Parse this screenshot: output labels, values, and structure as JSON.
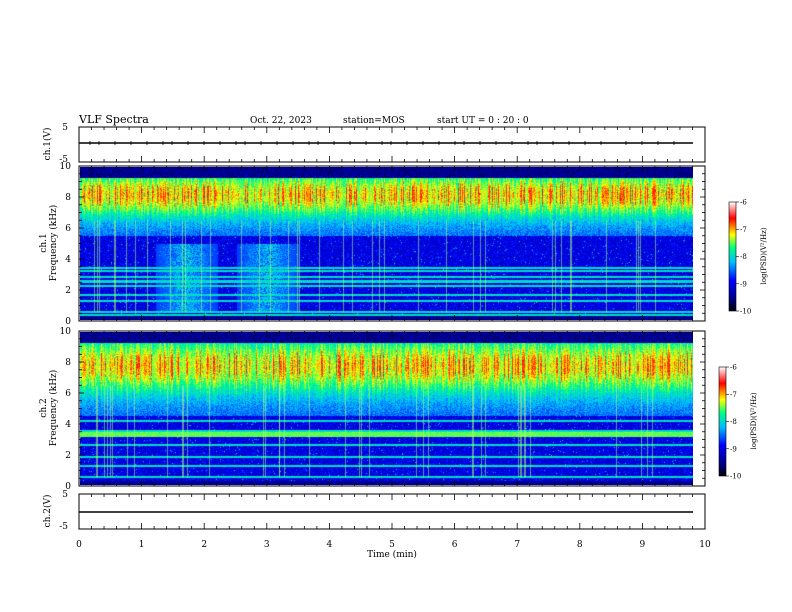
{
  "header": {
    "title": "VLF Spectra",
    "date": "Oct. 22, 2023",
    "station": "station=MOS",
    "start": "start  UT =   0 : 20 : 0"
  },
  "chart_data": [
    {
      "type": "line",
      "name": "ch1-waveform-panel",
      "ylabel": "ch.1(V)",
      "ylim": [
        -5,
        5
      ],
      "yticks": [
        "5",
        "-5"
      ],
      "xlim": [
        0,
        10
      ],
      "series": [
        {
          "x": [
            0,
            9.8
          ],
          "y": [
            0,
            0
          ]
        }
      ]
    },
    {
      "type": "heatmap",
      "name": "ch1-spectrogram",
      "ylabel": "ch.1\nFrequency (kHz)",
      "ylim": [
        0,
        10
      ],
      "yticks": [
        "0",
        "2",
        "4",
        "6",
        "8",
        "10"
      ],
      "xlim": [
        0,
        10
      ],
      "data_end_min": 9.8,
      "colorbar": {
        "label": "log(PSD)(V²/Hz)",
        "range": [
          -10,
          -6
        ],
        "ticks": [
          "-6",
          "-7",
          "-8",
          "-9",
          "-10"
        ],
        "colors": [
          "#000000",
          "#000080",
          "#0000ff",
          "#00c0ff",
          "#00ff80",
          "#ffff00",
          "#ff0000",
          "#ffffff"
        ]
      },
      "features": {
        "persistent_lines_khz": [
          0.3,
          0.5,
          1.2,
          1.6,
          2.2,
          2.5,
          2.8,
          3.2,
          3.4
        ],
        "noise_burst_min": [
          1.7,
          3.0
        ],
        "sferic_band_khz": [
          5.5,
          10
        ]
      }
    },
    {
      "type": "heatmap",
      "name": "ch2-spectrogram",
      "ylabel": "ch.2\nFrequency (kHz)",
      "ylim": [
        0,
        10
      ],
      "yticks": [
        "0",
        "2",
        "4",
        "6",
        "8",
        "10"
      ],
      "xlim": [
        0,
        10
      ],
      "data_end_min": 9.8,
      "colorbar": {
        "label": "log(PSD)(V²/Hz)",
        "range": [
          -10,
          -6
        ],
        "ticks": [
          "-6",
          "-7",
          "-8",
          "-9",
          "-10"
        ]
      },
      "features": {
        "persistent_lines_khz": [
          0.5,
          1.2,
          1.8,
          2.6,
          3.3,
          3.5,
          4.2
        ],
        "sferic_band_khz": [
          4.5,
          10
        ]
      }
    },
    {
      "type": "line",
      "name": "ch2-waveform-panel",
      "ylabel": "ch.2(V)",
      "ylim": [
        -5,
        5
      ],
      "yticks": [
        "5",
        "-5"
      ],
      "xlim": [
        0,
        10
      ],
      "series": [
        {
          "x": [
            0,
            9.8
          ],
          "y": [
            0,
            0
          ]
        }
      ]
    }
  ],
  "xaxis": {
    "label": "Time (min)",
    "ticks": [
      "0",
      "1",
      "2",
      "3",
      "4",
      "5",
      "6",
      "7",
      "8",
      "9",
      "10"
    ]
  }
}
